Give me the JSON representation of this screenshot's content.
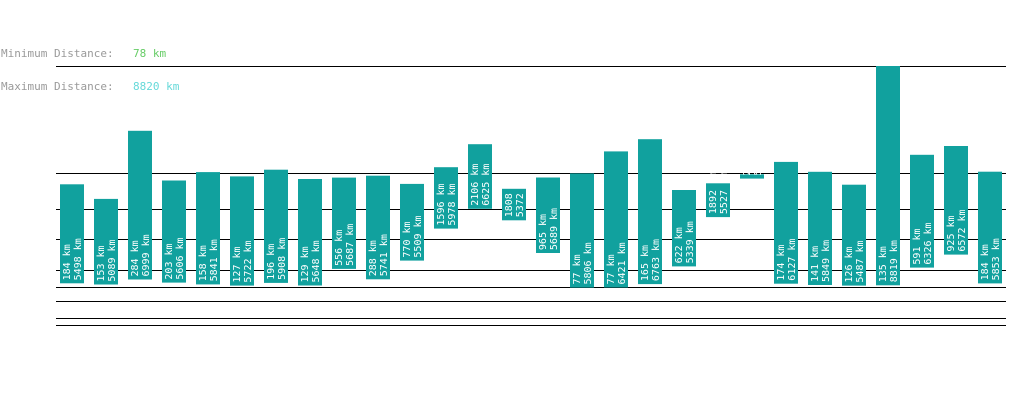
{
  "stats": {
    "min_label": "Minimum Distance:",
    "min_value": "78 km",
    "max_label": "Maximum Distance:",
    "max_value": "8820 km"
  },
  "colors": {
    "bar": "#11a19e",
    "bar_text": "#ffffff",
    "min_value": "#66cc66",
    "max_value": "#66d9d9",
    "label": "#9a9a9a",
    "grid": "#000000"
  },
  "chart_data": {
    "type": "bar",
    "series": [
      {
        "low": "184 km",
        "high": "5498 km"
      },
      {
        "low": "153 km",
        "high": "5089 km"
      },
      {
        "low": "284 km",
        "high": "6999 km"
      },
      {
        "low": "203 km",
        "high": "5606 km"
      },
      {
        "low": "158 km",
        "high": "5841 km"
      },
      {
        "low": "127 km",
        "high": "5722 km"
      },
      {
        "low": "196 km",
        "high": "5908 km"
      },
      {
        "low": "129 km",
        "high": "5648 km"
      },
      {
        "low": "556 km",
        "high": "5687 km"
      },
      {
        "low": "288 km",
        "high": "5741 km"
      },
      {
        "low": "770 km",
        "high": "5509 km"
      },
      {
        "low": "1596 km",
        "high": "5978 km"
      },
      {
        "low": "2106 km",
        "high": "6625 km"
      },
      {
        "low": "1808 km",
        "high": "5372 km"
      },
      {
        "low": "965 km",
        "high": "5689 km"
      },
      {
        "low": "77 km",
        "high": "5806 km"
      },
      {
        "low": "77 km",
        "high": "6421 km"
      },
      {
        "low": "165 km",
        "high": "6763 km"
      },
      {
        "low": "622 km",
        "high": "5339 km"
      },
      {
        "low": "1892 km",
        "high": "5527 km"
      },
      {
        "low": "2883 km",
        "high": "5779 km"
      },
      {
        "low": "174 km",
        "high": "6127 km"
      },
      {
        "low": "141 km",
        "high": "5849 km"
      },
      {
        "low": "126 km",
        "high": "5487 km"
      },
      {
        "low": "135 km",
        "high": "8819 km"
      },
      {
        "low": "591 km",
        "high": "6326 km"
      },
      {
        "low": "925 km",
        "high": "6572 km"
      },
      {
        "low": "184 km",
        "high": "5853 km"
      }
    ]
  }
}
